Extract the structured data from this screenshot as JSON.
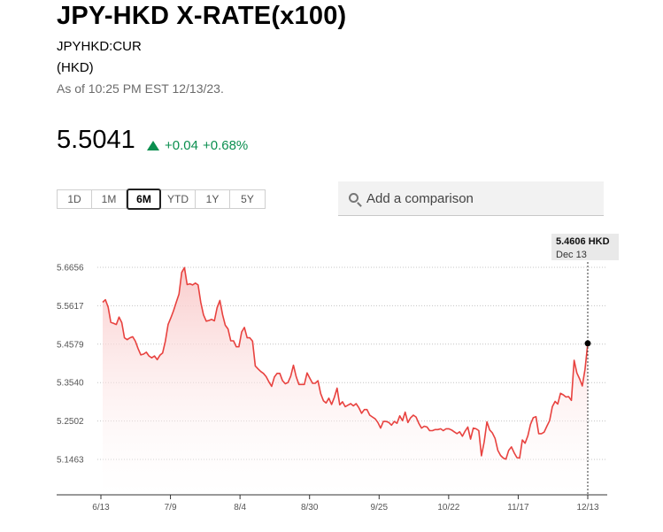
{
  "header": {
    "title": "JPY-HKD X-RATE(x100)",
    "ticker": "JPYHKD:CUR",
    "currency": "(HKD)",
    "as_of": "As of 10:25 PM EST 12/13/23."
  },
  "quote": {
    "price": "5.5041",
    "change": "+0.04",
    "change_pct": "+0.68%",
    "direction": "up",
    "up_color": "#0b8f4f"
  },
  "ranges": {
    "items": [
      "1D",
      "1M",
      "6M",
      "YTD",
      "1Y",
      "5Y"
    ],
    "selected": "6M"
  },
  "comparison": {
    "placeholder": "Add a comparison"
  },
  "tooltip": {
    "value": "5.4606 HKD",
    "date": "Dec 13"
  },
  "chart_data": {
    "type": "area",
    "line_color": "#e8423f",
    "fill_color": "#fde3e3",
    "yticks": [
      "5.6656",
      "5.5617",
      "5.4579",
      "5.3540",
      "5.2502",
      "5.1463"
    ],
    "xticks": [
      "6/13",
      "7/9",
      "8/4",
      "8/30",
      "9/25",
      "10/22",
      "11/17",
      "12/13"
    ],
    "ylim": [
      5.1,
      5.7
    ],
    "grid": "horizontal-dotted",
    "series": [
      {
        "values": [
          5.571,
          5.578,
          5.558,
          5.517,
          5.514,
          5.511,
          5.531,
          5.516,
          5.475,
          5.47,
          5.475,
          5.478,
          5.466,
          5.446,
          5.429,
          5.431,
          5.436,
          5.426,
          5.421,
          5.426,
          5.416,
          5.428,
          5.434,
          5.466,
          5.511,
          5.529,
          5.548,
          5.571,
          5.593,
          5.652,
          5.665,
          5.619,
          5.621,
          5.618,
          5.623,
          5.618,
          5.571,
          5.537,
          5.52,
          5.522,
          5.525,
          5.521,
          5.557,
          5.576,
          5.537,
          5.509,
          5.499,
          5.467,
          5.467,
          5.451,
          5.451,
          5.491,
          5.503,
          5.475,
          5.475,
          5.466,
          5.399,
          5.391,
          5.384,
          5.379,
          5.37,
          5.356,
          5.344,
          5.369,
          5.379,
          5.379,
          5.359,
          5.351,
          5.354,
          5.371,
          5.401,
          5.37,
          5.349,
          5.349,
          5.349,
          5.38,
          5.366,
          5.352,
          5.352,
          5.359,
          5.324,
          5.305,
          5.299,
          5.312,
          5.295,
          5.314,
          5.339,
          5.294,
          5.302,
          5.289,
          5.293,
          5.297,
          5.291,
          5.297,
          5.286,
          5.271,
          5.281,
          5.281,
          5.266,
          5.261,
          5.256,
          5.246,
          5.231,
          5.249,
          5.249,
          5.246,
          5.239,
          5.249,
          5.244,
          5.264,
          5.251,
          5.274,
          5.246,
          5.259,
          5.266,
          5.261,
          5.244,
          5.231,
          5.236,
          5.234,
          5.224,
          5.224,
          5.227,
          5.227,
          5.229,
          5.224,
          5.229,
          5.229,
          5.226,
          5.221,
          5.216,
          5.221,
          5.209,
          5.223,
          5.234,
          5.201,
          5.231,
          5.229,
          5.224,
          5.156,
          5.194,
          5.248,
          5.226,
          5.218,
          5.203,
          5.171,
          5.157,
          5.15,
          5.147,
          5.171,
          5.18,
          5.164,
          5.151,
          5.15,
          5.199,
          5.19,
          5.21,
          5.241,
          5.259,
          5.262,
          5.216,
          5.216,
          5.22,
          5.236,
          5.251,
          5.289,
          5.303,
          5.296,
          5.325,
          5.321,
          5.315,
          5.316,
          5.306,
          5.414,
          5.38,
          5.364,
          5.345,
          5.39,
          5.46
        ]
      }
    ]
  }
}
